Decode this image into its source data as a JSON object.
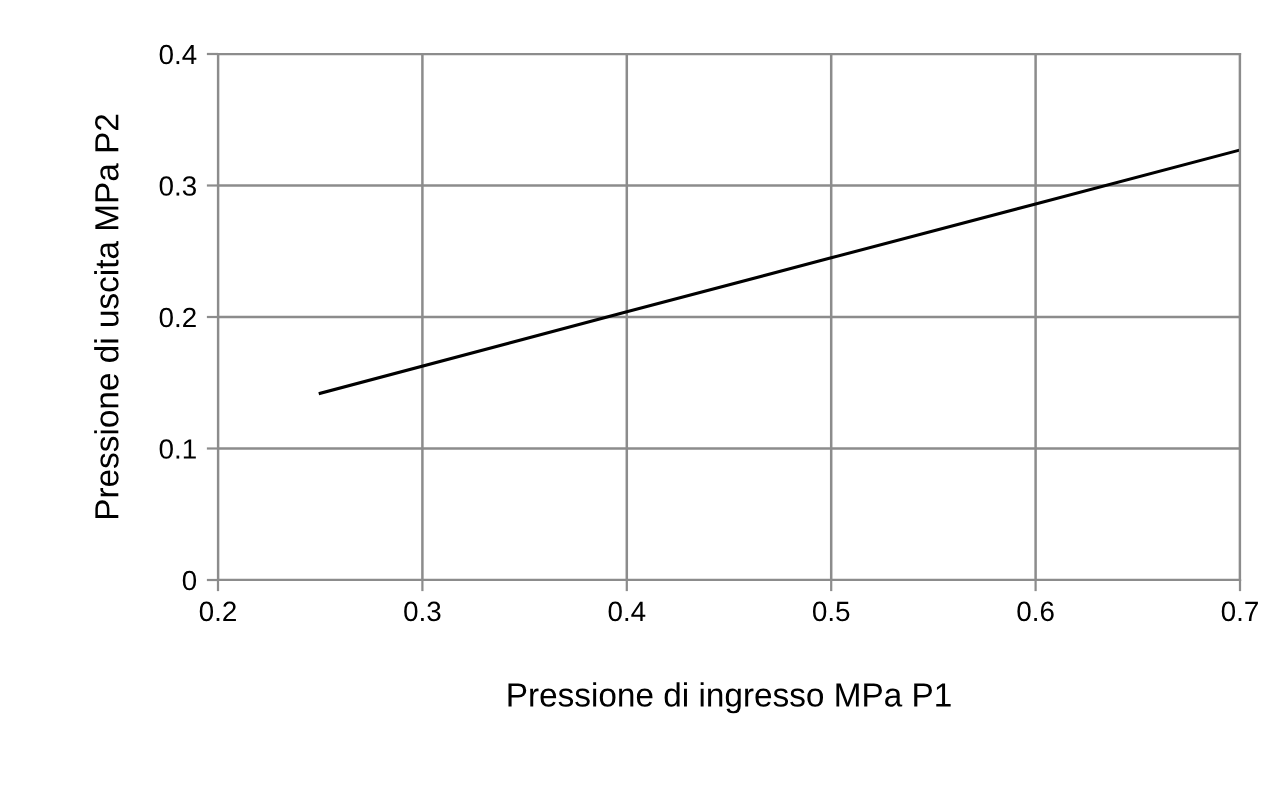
{
  "chart_data": {
    "type": "line",
    "xlabel": "Pressione di ingresso MPa P1",
    "ylabel": "Pressione di uscita MPa P2",
    "x": [
      0.25,
      0.4,
      0.5,
      0.6,
      0.7
    ],
    "series": [
      {
        "color": "#000000",
        "values": [
          0.142,
          0.204,
          0.245,
          0.286,
          0.327
        ]
      }
    ],
    "xlim": [
      0.2,
      0.7
    ],
    "xticks": [
      0.2,
      0.3,
      0.4,
      0.5,
      0.6,
      0.7
    ],
    "ylim": [
      0,
      0.4
    ],
    "yticks": [
      0,
      0.1,
      0.2,
      0.3,
      0.4
    ],
    "grid": true,
    "marker": "none",
    "line_style": "solid"
  }
}
